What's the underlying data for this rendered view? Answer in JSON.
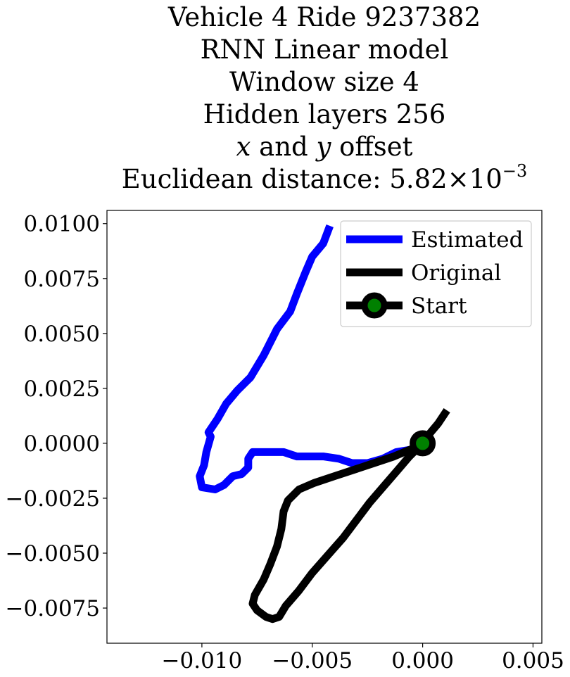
{
  "chart_data": {
    "type": "line",
    "title_lines": [
      "Vehicle 4 Ride 9237382",
      "RNN Linear model",
      "Window size 4",
      "Hidden layers 256"
    ],
    "title_offset_x": "x",
    "title_offset_and": "and",
    "title_offset_y": "y",
    "title_offset_rest": "offset",
    "title_distance_prefix": "Euclidean distance:",
    "title_distance_mantissa": "5.82",
    "title_distance_times": "×",
    "title_distance_base": "10",
    "title_distance_exponent": "−3",
    "xlim": [
      -0.0143,
      0.0054
    ],
    "ylim": [
      -0.0091,
      0.0106
    ],
    "xticks": [
      -0.01,
      -0.005,
      0.0,
      0.005
    ],
    "xtick_labels": [
      "−0.010",
      "−0.005",
      "0.000",
      "0.005"
    ],
    "yticks": [
      0.01,
      0.0075,
      0.005,
      0.0025,
      0.0,
      -0.0025,
      -0.005,
      -0.0075
    ],
    "ytick_labels": [
      "0.0100",
      "0.0075",
      "0.0050",
      "0.0025",
      "0.0000",
      "−0.0025",
      "−0.0050",
      "−0.0075"
    ],
    "grid": false,
    "legend_position": "top-right",
    "series": [
      {
        "name": "Estimated",
        "color": "#0000ff",
        "points": [
          [
            -0.0042,
            0.0099
          ],
          [
            -0.0045,
            0.0091
          ],
          [
            -0.005,
            0.0085
          ],
          [
            -0.0053,
            0.0078
          ],
          [
            -0.0057,
            0.0068
          ],
          [
            -0.006,
            0.006
          ],
          [
            -0.0066,
            0.0052
          ],
          [
            -0.0072,
            0.004
          ],
          [
            -0.0078,
            0.003
          ],
          [
            -0.0084,
            0.0024
          ],
          [
            -0.0089,
            0.0018
          ],
          [
            -0.0093,
            0.0011
          ],
          [
            -0.0097,
            0.0005
          ],
          [
            -0.0096,
            0.0003
          ],
          [
            -0.0098,
            -0.0004
          ],
          [
            -0.0099,
            -0.001
          ],
          [
            -0.0101,
            -0.0015
          ],
          [
            -0.01,
            -0.002
          ],
          [
            -0.0094,
            -0.0021
          ],
          [
            -0.009,
            -0.0019
          ],
          [
            -0.0086,
            -0.0015
          ],
          [
            -0.0082,
            -0.0014
          ],
          [
            -0.0079,
            -0.0011
          ],
          [
            -0.0079,
            -0.0007
          ],
          [
            -0.0077,
            -0.0004
          ],
          [
            -0.007,
            -0.0004
          ],
          [
            -0.0063,
            -0.0004
          ],
          [
            -0.0057,
            -0.0006
          ],
          [
            -0.005,
            -0.0006
          ],
          [
            -0.0045,
            -0.0006
          ],
          [
            -0.0038,
            -0.0007
          ],
          [
            -0.0032,
            -0.0009
          ],
          [
            -0.0025,
            -0.0009
          ],
          [
            -0.0018,
            -0.0007
          ],
          [
            -0.0012,
            -0.0004
          ],
          [
            -0.0006,
            -0.0003
          ],
          [
            -0.0001,
            -0.0001
          ],
          [
            0.0002,
            0.0001
          ]
        ]
      },
      {
        "name": "Original",
        "color": "#000000",
        "points": [
          [
            0.0011,
            0.0015
          ],
          [
            0.0007,
            0.0009
          ],
          [
            0.0002,
            0.0003
          ],
          [
            0.0,
            0.0
          ],
          [
            -0.0006,
            -0.0006
          ],
          [
            -0.0012,
            -0.0013
          ],
          [
            -0.0018,
            -0.002
          ],
          [
            -0.0024,
            -0.0027
          ],
          [
            -0.003,
            -0.0035
          ],
          [
            -0.0036,
            -0.0043
          ],
          [
            -0.0043,
            -0.0051
          ],
          [
            -0.005,
            -0.0059
          ],
          [
            -0.0056,
            -0.0067
          ],
          [
            -0.0062,
            -0.0074
          ],
          [
            -0.0065,
            -0.0079
          ],
          [
            -0.0068,
            -0.008
          ],
          [
            -0.0071,
            -0.0079
          ],
          [
            -0.0075,
            -0.0076
          ],
          [
            -0.0077,
            -0.0073
          ],
          [
            -0.0076,
            -0.0069
          ],
          [
            -0.0072,
            -0.0062
          ],
          [
            -0.0069,
            -0.0055
          ],
          [
            -0.0066,
            -0.0047
          ],
          [
            -0.0064,
            -0.0039
          ],
          [
            -0.0063,
            -0.0031
          ],
          [
            -0.0061,
            -0.0026
          ],
          [
            -0.0056,
            -0.0021
          ],
          [
            -0.0049,
            -0.0018
          ],
          [
            -0.004,
            -0.0015
          ],
          [
            -0.0031,
            -0.0012
          ],
          [
            -0.0022,
            -0.0009
          ],
          [
            -0.0013,
            -0.0006
          ],
          [
            -0.0006,
            -0.0003
          ],
          [
            -0.0001,
            -0.0001
          ]
        ]
      },
      {
        "name": "Start",
        "color": "#000000",
        "marker_face": "#008000",
        "points": [
          [
            0.0,
            0.0
          ]
        ]
      }
    ]
  }
}
